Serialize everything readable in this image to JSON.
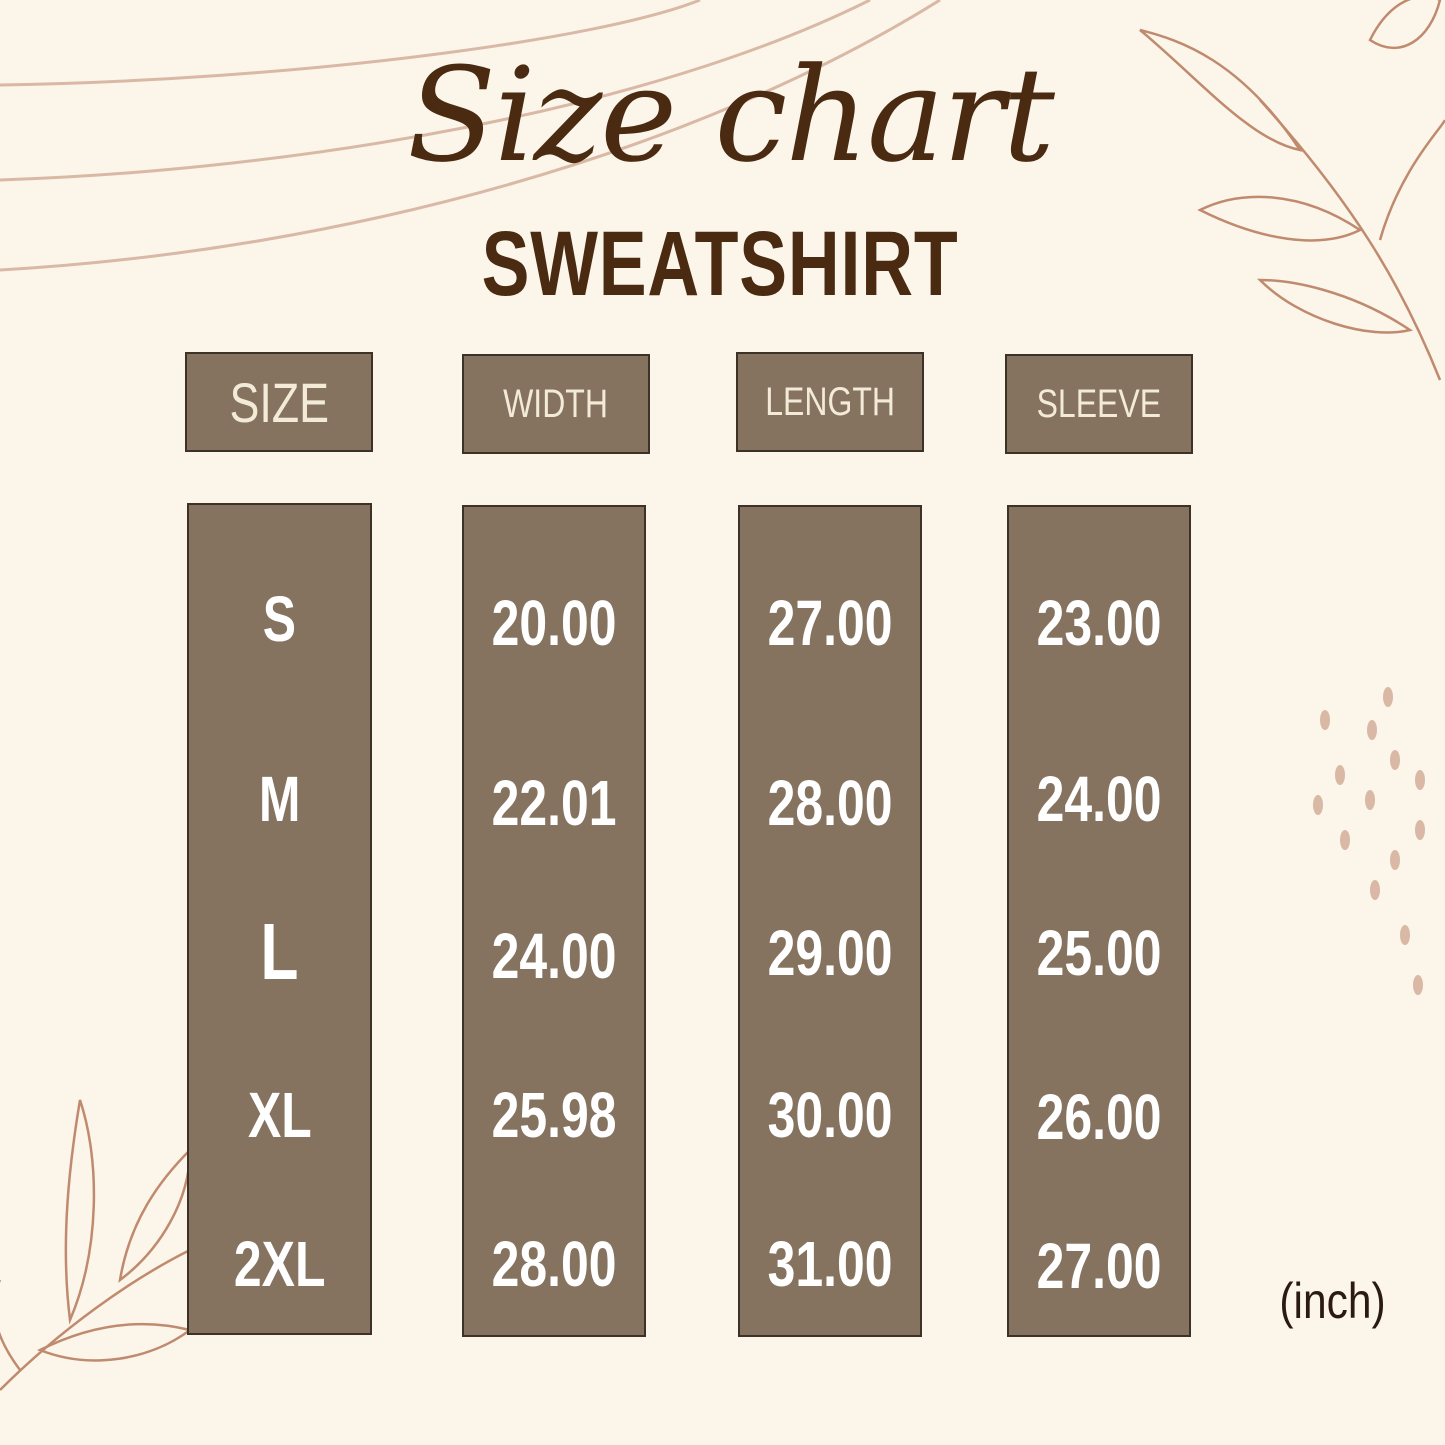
{
  "title_script": "Size chart",
  "subtitle": "SWEATSHIRT",
  "colors": {
    "background": "#fbf5ea",
    "box": "#85735f",
    "title": "#4a2a10",
    "leaf": "#c08a6e"
  },
  "columns": [
    {
      "header": "SIZE",
      "values": [
        "S",
        "M",
        "L",
        "XL",
        "2XL"
      ]
    },
    {
      "header": "WIDTH",
      "values": [
        "20.00",
        "22.01",
        "24.00",
        "25.98",
        "28.00"
      ]
    },
    {
      "header": "LENGTH",
      "values": [
        "27.00",
        "28.00",
        "29.00",
        "30.00",
        "31.00"
      ]
    },
    {
      "header": "SLEEVE",
      "values": [
        "23.00",
        "24.00",
        "25.00",
        "26.00",
        "27.00"
      ]
    }
  ],
  "unit": "(inch)"
}
